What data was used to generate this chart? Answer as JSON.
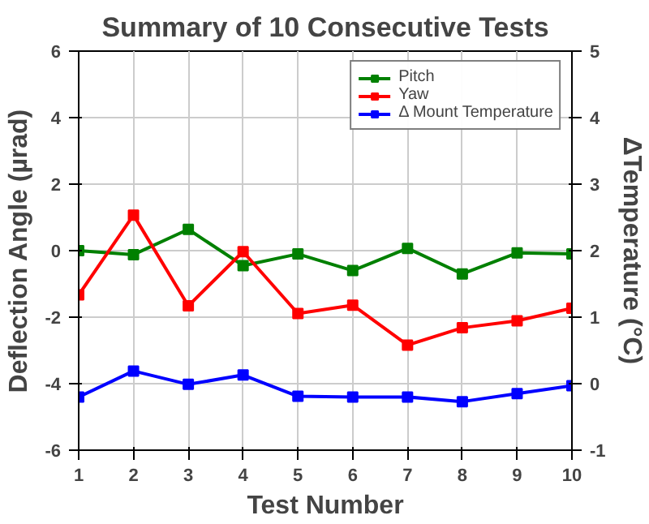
{
  "chart_data": {
    "type": "line",
    "title": "Summary of 10 Consecutive Tests",
    "xlabel": "Test Number",
    "ylabel": "Deflection Angle (µrad)",
    "y2label": "ΔTemperature (°C)",
    "x": [
      1,
      2,
      3,
      4,
      5,
      6,
      7,
      8,
      9,
      10
    ],
    "xlim": [
      1,
      10
    ],
    "xticks": [
      1,
      2,
      3,
      4,
      5,
      6,
      7,
      8,
      9,
      10
    ],
    "ylim": [
      -6,
      6
    ],
    "yticks": [
      -6,
      -4,
      -2,
      0,
      2,
      4,
      6
    ],
    "y2lim": [
      -1,
      5
    ],
    "y2ticks": [
      -1,
      0,
      1,
      2,
      3,
      4,
      5
    ],
    "grid": true,
    "legend": "top right",
    "marker": "square",
    "line_style": "solid",
    "series": [
      {
        "name": "Pitch",
        "color": "#008000",
        "values": [
          0.0,
          -0.12,
          0.64,
          -0.45,
          -0.1,
          -0.6,
          0.07,
          -0.7,
          -0.07,
          -0.1
        ]
      },
      {
        "name": "Yaw",
        "color": "#ff0000",
        "values": [
          -1.33,
          1.07,
          -1.66,
          -0.03,
          -1.89,
          -1.64,
          -2.84,
          -2.32,
          -2.11,
          -1.73
        ]
      },
      {
        "name": "Δ Mount Temperature",
        "color": "#0000ff",
        "axis": "y2",
        "values": [
          -0.2,
          0.19,
          -0.01,
          0.13,
          -0.19,
          -0.2,
          -0.2,
          -0.27,
          -0.15,
          -0.03
        ]
      }
    ]
  }
}
